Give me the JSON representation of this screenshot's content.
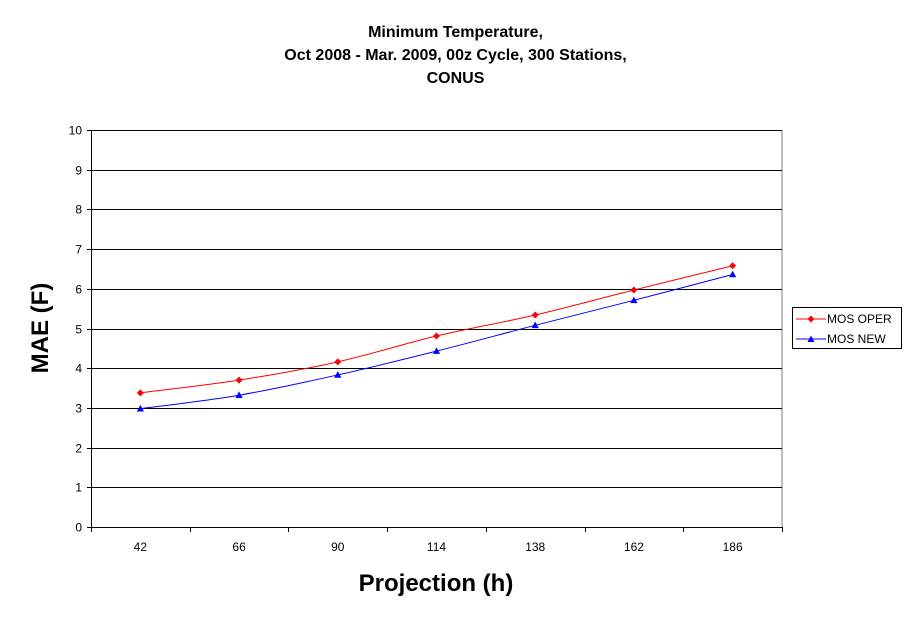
{
  "chart_data": {
    "type": "line",
    "title_lines": [
      "Minimum Temperature,",
      "Oct 2008 - Mar. 2009, 00z Cycle, 300 Stations,",
      "CONUS"
    ],
    "xlabel": "Projection (h)",
    "ylabel": "MAE (F)",
    "categories": [
      "42",
      "66",
      "90",
      "114",
      "138",
      "162",
      "186"
    ],
    "ylim": [
      0,
      10
    ],
    "yticks": [
      "0",
      "1",
      "2",
      "3",
      "4",
      "5",
      "6",
      "7",
      "8",
      "9",
      "10"
    ],
    "grid": "horizontal",
    "legend_position": "right",
    "series": [
      {
        "name": "MOS OPER",
        "color": "#ff0000",
        "marker": "diamond",
        "values": [
          3.38,
          3.7,
          4.16,
          4.81,
          5.34,
          5.97,
          6.58
        ]
      },
      {
        "name": "MOS NEW",
        "color": "#0000ff",
        "marker": "triangle",
        "values": [
          2.98,
          3.32,
          3.83,
          4.43,
          5.08,
          5.71,
          6.36
        ]
      }
    ]
  }
}
